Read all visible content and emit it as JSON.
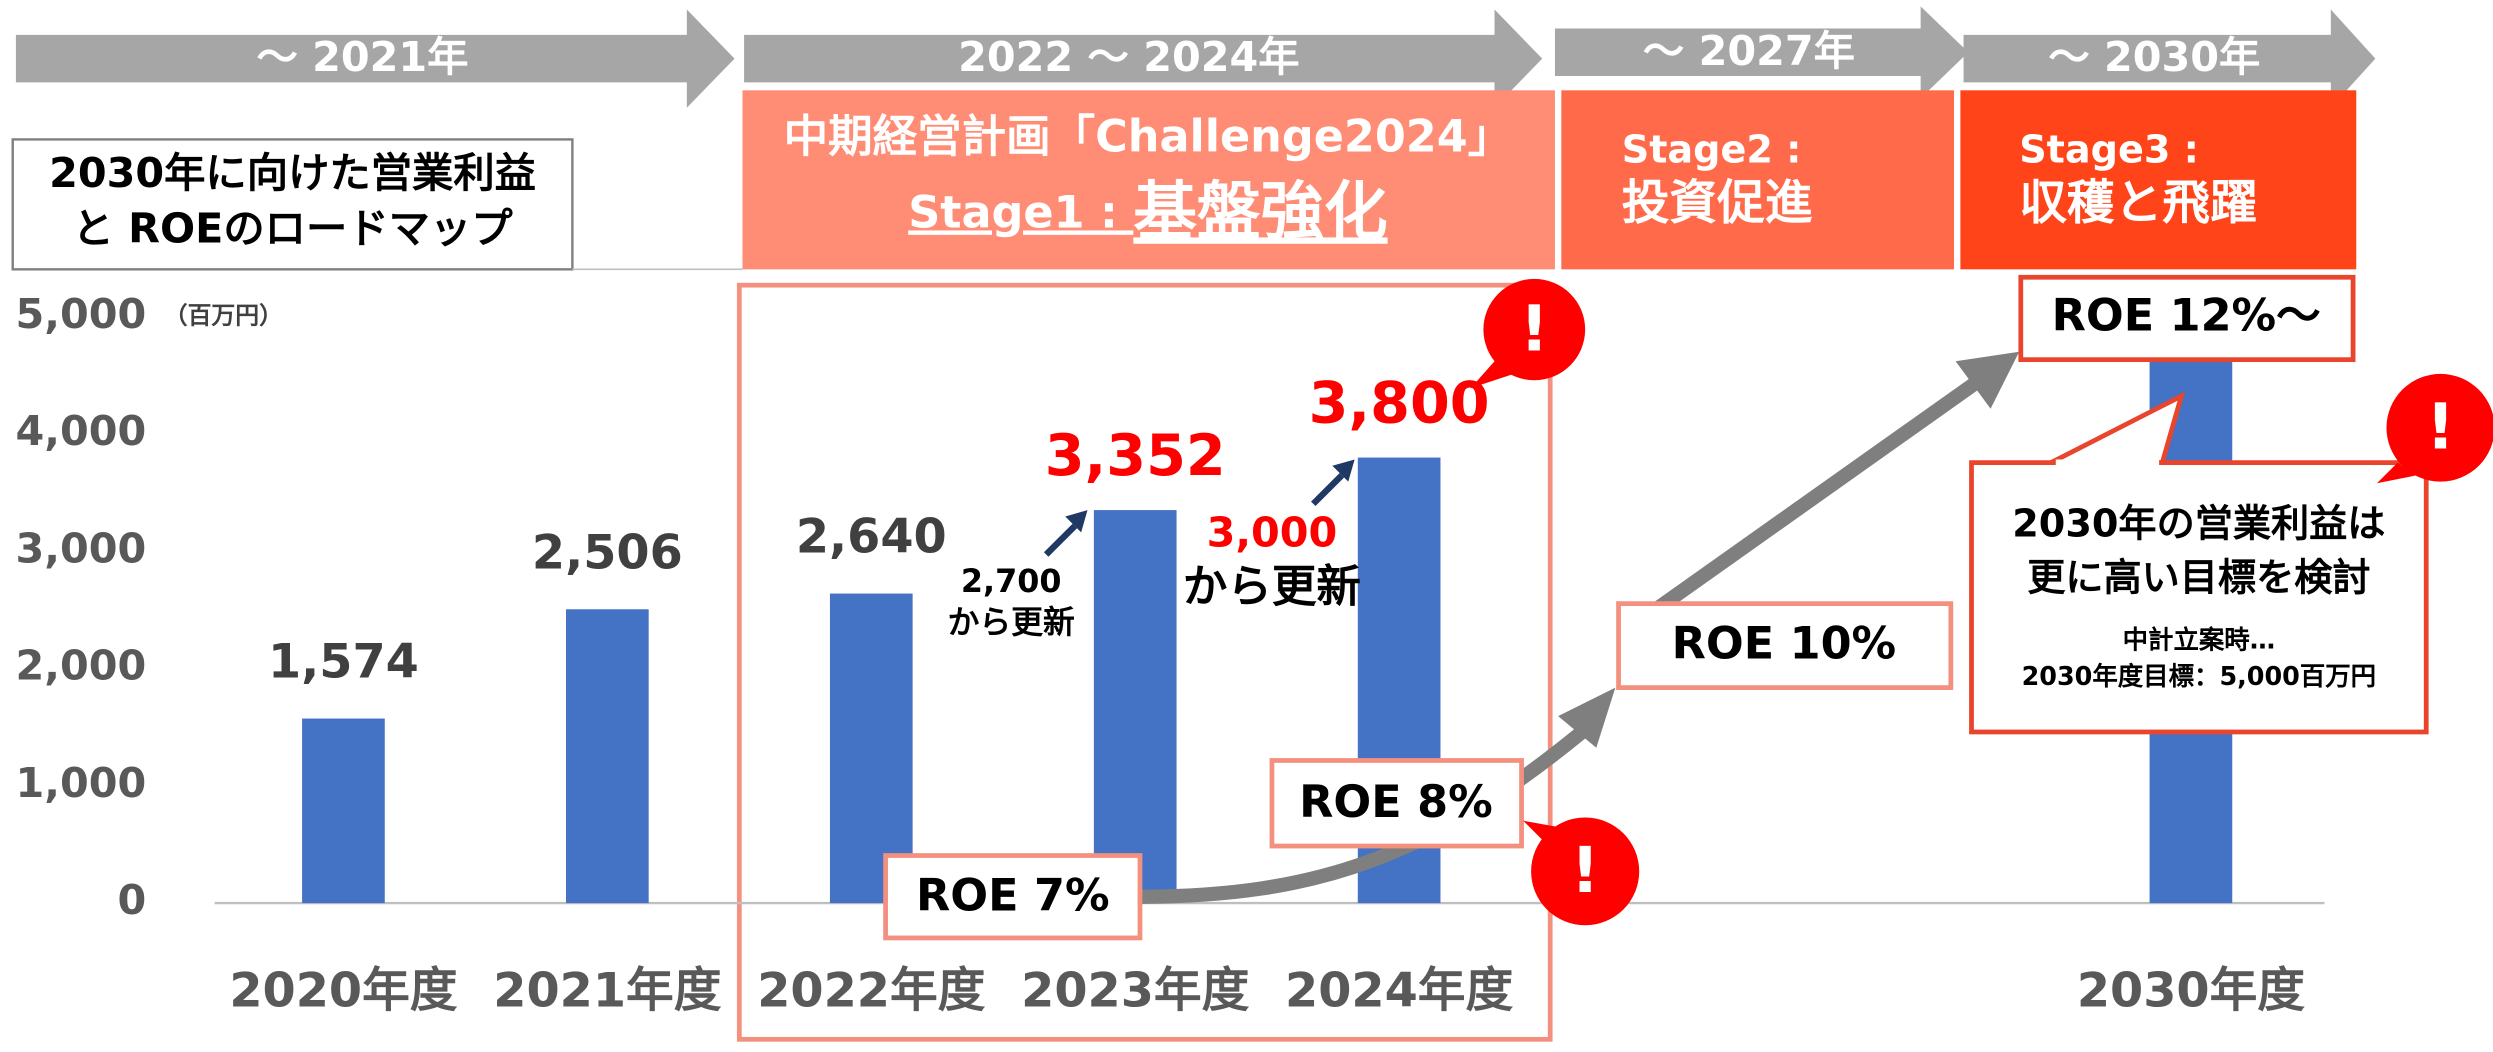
{
  "timeline": [
    "～ 2021年",
    "2022 ～ 2024年",
    "～ 2027年",
    "～ 2030年"
  ],
  "heading": [
    "2030年に向けた営業利益",
    "と ROEのロードマップ"
  ],
  "stage1": {
    "plan": "中期経営計画「Challenge2024」",
    "prefix": "Stage1 : ",
    "name": "基盤強化"
  },
  "stage2": {
    "label": "Stage2 :",
    "name": "投資促進"
  },
  "stage3": {
    "label": "Stage3 :",
    "name": "収穫と飛躍"
  },
  "updates": [
    {
      "from": "2,700",
      "text": "から更新"
    },
    {
      "from": "3,000",
      "text": "から更新"
    }
  ],
  "roe": [
    "ROE 7%",
    "ROE 8%",
    "ROE 10%",
    "ROE 12%～"
  ],
  "callout": {
    "title": [
      "2030年の営業利益は",
      "更に高い目標を検討"
    ],
    "note": [
      "中計立案時…",
      "2030年度目標：5,000百万円"
    ]
  },
  "alert_mark": "!",
  "chart_data": {
    "type": "bar",
    "unit": "（百万円）",
    "categories": [
      "2020年度",
      "2021年度",
      "2022年度",
      "2023年度",
      "2024年度",
      null,
      null,
      "2030年度"
    ],
    "values": [
      1574,
      2506,
      2640,
      3352,
      3800,
      null,
      null,
      5000
    ],
    "value_labels": [
      "1,574",
      "2,506",
      "2,640",
      "3,352",
      "3,800",
      null,
      null,
      null
    ],
    "value_label_colors": [
      "#404040",
      "#404040",
      "#404040",
      "#ff0000",
      "#ff0000",
      null,
      null,
      null
    ],
    "color": "#4472c4",
    "ylim": [
      0,
      5000
    ],
    "yticks": [
      0,
      {
        "value": 1000,
        "label": "1,000"
      },
      {
        "value": 2000,
        "label": "2,000"
      },
      {
        "value": 3000,
        "label": "3,000"
      },
      {
        "value": 4000,
        "label": "4,000"
      },
      {
        "value": 5000,
        "label": "5,000"
      }
    ]
  }
}
